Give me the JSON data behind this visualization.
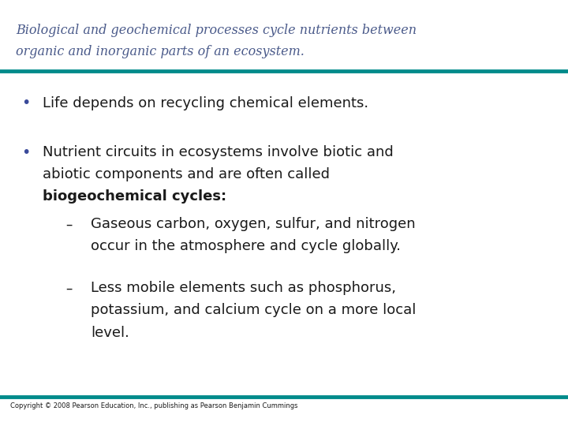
{
  "title_line1": "Biological and geochemical processes cycle nutrients between",
  "title_line2": "organic and inorganic parts of an ecosystem.",
  "title_color": "#4a5a8a",
  "teal_color": "#008b8b",
  "bullet_color": "#3a4a9a",
  "text_color": "#1a1a1a",
  "bg_color": "#ffffff",
  "copyright": "Copyright © 2008 Pearson Education, Inc., publishing as Pearson Benjamin Cummings",
  "bullet1": "Life depends on recycling chemical elements.",
  "bullet2_line1": "Nutrient circuits in ecosystems involve biotic and",
  "bullet2_line2": "abiotic components and are often called",
  "bullet2_bold": "biogeochemical cycles:",
  "sub1_line1": "Gaseous carbon, oxygen, sulfur, and nitrogen",
  "sub1_line2": "occur in the atmosphere and cycle globally.",
  "sub2_line1": "Less mobile elements such as phosphorus,",
  "sub2_line2": "potassium, and calcium cycle on a more local",
  "sub2_line3": "level."
}
